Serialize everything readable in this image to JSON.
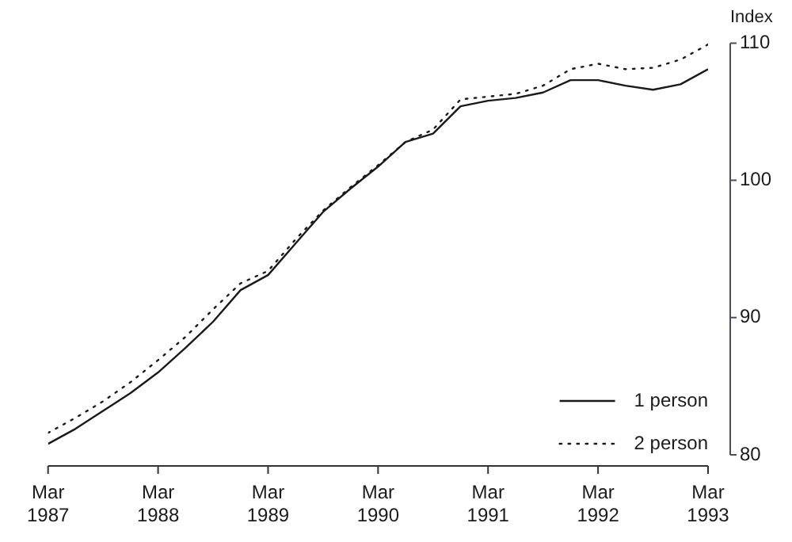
{
  "chart_data": {
    "type": "line",
    "ylabel": "Index",
    "x": [
      "1987-03",
      "1987-06",
      "1987-09",
      "1987-12",
      "1988-03",
      "1988-06",
      "1988-09",
      "1988-12",
      "1989-03",
      "1989-06",
      "1989-09",
      "1989-12",
      "1990-03",
      "1990-06",
      "1990-09",
      "1990-12",
      "1991-03",
      "1991-06",
      "1991-09",
      "1991-12",
      "1992-03",
      "1992-06",
      "1992-09",
      "1992-12",
      "1993-03"
    ],
    "series": [
      {
        "name": "1 person",
        "color": "#1a1a1a",
        "line_style": "solid",
        "values": [
          80.8,
          81.9,
          83.2,
          84.5,
          86.0,
          87.8,
          89.7,
          92.0,
          93.1,
          95.4,
          97.7,
          99.4,
          101.0,
          102.8,
          103.4,
          105.4,
          105.8,
          106.0,
          106.4,
          107.3,
          107.3,
          106.9,
          106.6,
          107.0,
          108.1
        ]
      },
      {
        "name": "2 person",
        "color": "#1a1a1a",
        "line_style": "dotted",
        "values": [
          81.6,
          82.7,
          83.9,
          85.3,
          86.9,
          88.6,
          90.6,
          92.5,
          93.4,
          95.7,
          97.8,
          99.5,
          101.1,
          102.8,
          103.7,
          105.9,
          106.1,
          106.3,
          106.9,
          108.1,
          108.5,
          108.1,
          108.2,
          108.8,
          109.9
        ]
      }
    ],
    "xlim": [
      "1987-03",
      "1993-03"
    ],
    "xticks": [
      {
        "value": "1987-03",
        "label": "Mar 1987"
      },
      {
        "value": "1988-03",
        "label": "Mar 1988"
      },
      {
        "value": "1989-03",
        "label": "Mar 1989"
      },
      {
        "value": "1990-03",
        "label": "Mar 1990"
      },
      {
        "value": "1991-03",
        "label": "Mar 1991"
      },
      {
        "value": "1992-03",
        "label": "Mar 1992"
      },
      {
        "value": "1993-03",
        "label": "Mar 1993"
      }
    ],
    "ylim": [
      80,
      110
    ],
    "yticks": [
      80,
      90,
      100,
      110
    ],
    "legend": "bottom right"
  }
}
